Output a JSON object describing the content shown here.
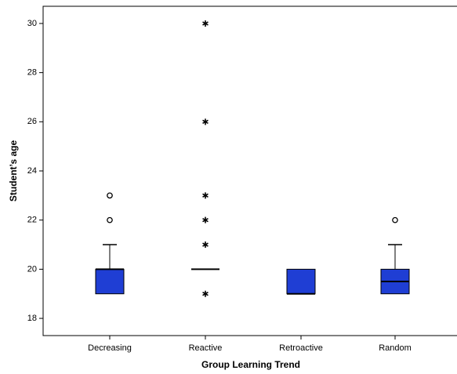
{
  "chart_data": {
    "type": "boxplot",
    "x_label": "Group Learning Trend",
    "y_label": "Student’s age",
    "categories": [
      "Decreasing",
      "Reactive",
      "Retroactive",
      "Random"
    ],
    "min": [
      19,
      20,
      19,
      19
    ],
    "q1": [
      19,
      20,
      19,
      19
    ],
    "median": [
      20,
      20,
      19,
      19.5
    ],
    "q3": [
      20,
      20,
      20,
      20
    ],
    "max": [
      21,
      20,
      20,
      21
    ],
    "outliers": [
      [
        {
          "value": 22,
          "marker": "circle"
        },
        {
          "value": 23,
          "marker": "circle"
        }
      ],
      [
        {
          "value": 19,
          "marker": "star"
        },
        {
          "value": 21,
          "marker": "star"
        },
        {
          "value": 22,
          "marker": "star"
        },
        {
          "value": 23,
          "marker": "star"
        },
        {
          "value": 26,
          "marker": "star"
        },
        {
          "value": 30,
          "marker": "star"
        }
      ],
      [],
      [
        {
          "value": 22,
          "marker": "circle"
        }
      ]
    ],
    "color": "#1f3ed4",
    "ylim": [
      17.3,
      30.7
    ],
    "yticks": [
      18,
      20,
      22,
      24,
      26,
      28,
      30
    ]
  }
}
